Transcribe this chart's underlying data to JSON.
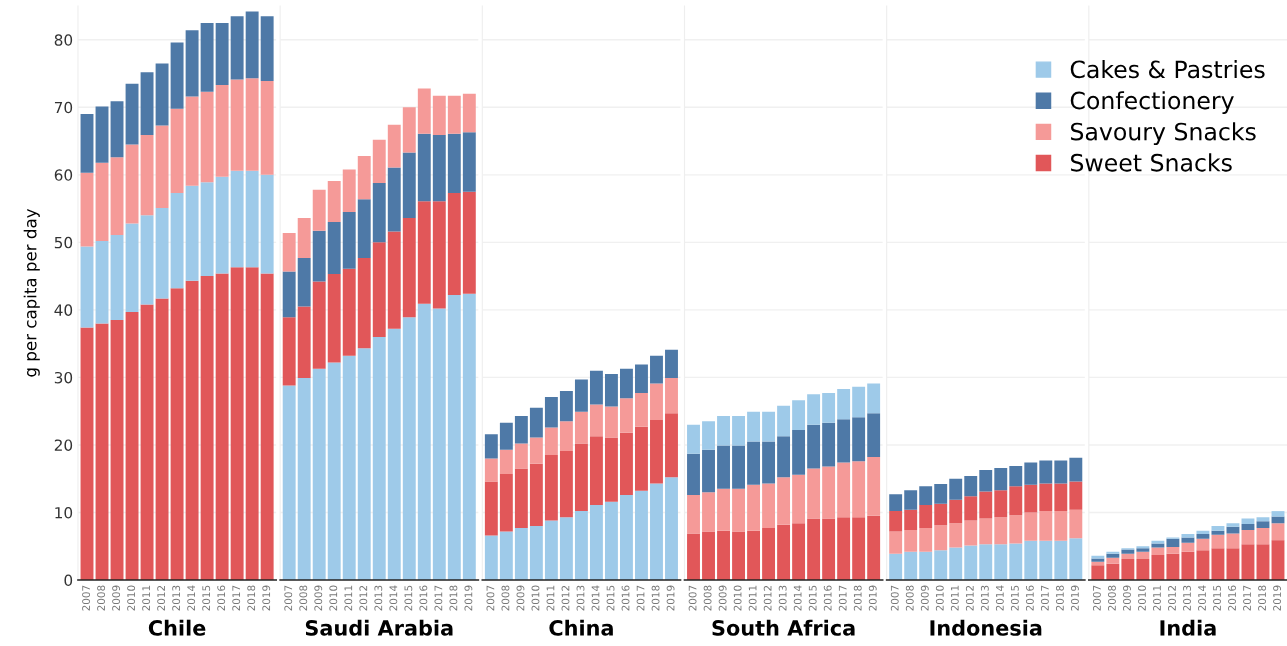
{
  "chart_data": [
    {
      "type": "bar",
      "stacked": true,
      "xlabel": "Chile",
      "legend": "top right",
      "ylabel": "g per capita per day",
      "categories": [
        "2007",
        "2008",
        "2009",
        "2010",
        "2011",
        "2012",
        "2013",
        "2014",
        "2015",
        "2016",
        "2017",
        "2018",
        "2019"
      ],
      "ylim": [
        0,
        85
      ],
      "yticks": [
        0,
        10,
        20,
        30,
        40,
        50,
        60,
        70,
        80
      ],
      "grid": "y",
      "series": [
        {
          "name": "Sweet Snacks",
          "color": "#e15759",
          "values": [
            37.4,
            38.0,
            38.5,
            39.7,
            40.8,
            41.7,
            43.2,
            44.3,
            45.0,
            45.4,
            46.3,
            46.3,
            45.4
          ]
        },
        {
          "name": "Cakes & Pastries",
          "color": "#9ecae9",
          "values": [
            12.0,
            12.2,
            12.6,
            13.1,
            13.2,
            13.4,
            14.1,
            14.1,
            13.9,
            14.3,
            14.3,
            14.3,
            14.6
          ]
        },
        {
          "name": "Savoury Snacks",
          "color": "#f59a98",
          "values": [
            10.9,
            11.6,
            11.5,
            11.7,
            11.9,
            12.2,
            12.5,
            13.2,
            13.4,
            13.6,
            13.5,
            13.7,
            13.9
          ]
        },
        {
          "name": "Confectionery",
          "color": "#4e79a7",
          "values": [
            8.7,
            8.3,
            8.3,
            9.0,
            9.3,
            9.2,
            9.8,
            9.8,
            10.2,
            9.2,
            9.4,
            9.9,
            9.6
          ]
        }
      ]
    },
    {
      "type": "bar",
      "stacked": true,
      "xlabel": "Saudi Arabia",
      "tick_labels": "x",
      "categories": [
        "2007",
        "2008",
        "2009",
        "2010",
        "2011",
        "2012",
        "2013",
        "2014",
        "2015",
        "2016",
        "2017",
        "2018",
        "2019"
      ],
      "ylim": [
        0,
        85
      ],
      "yticks": [
        0,
        10,
        20,
        30,
        40,
        50,
        60,
        70,
        80
      ],
      "grid": "y",
      "series": [
        {
          "color": "#9ecae9",
          "values": [
            28.8,
            29.9,
            31.3,
            32.2,
            33.2,
            34.3,
            36.0,
            37.2,
            38.9,
            40.9,
            40.2,
            42.2,
            42.4
          ]
        },
        {
          "color": "#e15759",
          "values": [
            10.1,
            10.6,
            12.9,
            13.1,
            12.9,
            13.4,
            14.0,
            14.4,
            14.7,
            15.2,
            15.9,
            15.1,
            15.1
          ]
        },
        {
          "color": "#4e79a7",
          "values": [
            6.8,
            7.2,
            7.5,
            7.7,
            8.4,
            8.7,
            8.8,
            9.5,
            9.7,
            10.0,
            9.8,
            8.8,
            8.8
          ]
        },
        {
          "color": "#f59a98",
          "values": [
            5.7,
            5.9,
            6.1,
            6.1,
            6.3,
            6.4,
            6.4,
            6.3,
            6.7,
            6.7,
            5.8,
            5.6,
            5.7
          ]
        }
      ]
    },
    {
      "type": "bar",
      "stacked": true,
      "xlabel": "China",
      "tick_labels": "x",
      "categories": [
        "2007",
        "2008",
        "2009",
        "2010",
        "2011",
        "2012",
        "2013",
        "2014",
        "2015",
        "2016",
        "2017",
        "2018",
        "2019"
      ],
      "ylim": [
        0,
        85
      ],
      "yticks": [
        0,
        10,
        20,
        30,
        40,
        50,
        60,
        70,
        80
      ],
      "grid": "y",
      "series": [
        {
          "color": "#9ecae9",
          "values": [
            6.6,
            7.2,
            7.7,
            8.0,
            8.8,
            9.3,
            10.2,
            11.1,
            11.6,
            12.6,
            13.2,
            14.3,
            15.2
          ]
        },
        {
          "color": "#e15759",
          "values": [
            8.0,
            8.5,
            8.8,
            9.2,
            9.7,
            9.8,
            10.0,
            10.2,
            9.5,
            9.2,
            9.5,
            9.4,
            9.5
          ]
        },
        {
          "color": "#f59a98",
          "values": [
            3.4,
            3.6,
            3.7,
            3.9,
            4.1,
            4.4,
            4.7,
            4.7,
            4.6,
            5.1,
            5.0,
            5.4,
            5.2
          ]
        },
        {
          "color": "#4e79a7",
          "values": [
            3.6,
            4.0,
            4.1,
            4.4,
            4.5,
            4.5,
            4.8,
            5.0,
            4.8,
            4.4,
            4.2,
            4.1,
            4.2
          ]
        }
      ]
    },
    {
      "type": "bar",
      "stacked": true,
      "xlabel": "South Africa",
      "tick_labels": "x",
      "categories": [
        "2007",
        "2008",
        "2009",
        "2010",
        "2011",
        "2012",
        "2013",
        "2014",
        "2015",
        "2016",
        "2017",
        "2018",
        "2019"
      ],
      "ylim": [
        0,
        85
      ],
      "yticks": [
        0,
        10,
        20,
        30,
        40,
        50,
        60,
        70,
        80
      ],
      "grid": "y",
      "series": [
        {
          "color": "#e15759",
          "values": [
            6.9,
            7.2,
            7.3,
            7.2,
            7.3,
            7.7,
            8.2,
            8.4,
            9.1,
            9.1,
            9.3,
            9.3,
            9.5
          ]
        },
        {
          "color": "#f59a98",
          "values": [
            5.7,
            5.8,
            6.2,
            6.3,
            6.8,
            6.6,
            7.0,
            7.2,
            7.4,
            7.7,
            8.1,
            8.3,
            8.7
          ]
        },
        {
          "color": "#4e79a7",
          "values": [
            6.1,
            6.3,
            6.4,
            6.4,
            6.4,
            6.2,
            6.1,
            6.6,
            6.5,
            6.5,
            6.4,
            6.5,
            6.5
          ]
        },
        {
          "color": "#9ecae9",
          "values": [
            4.3,
            4.2,
            4.4,
            4.4,
            4.4,
            4.4,
            4.5,
            4.4,
            4.5,
            4.4,
            4.5,
            4.5,
            4.4
          ]
        }
      ]
    },
    {
      "type": "bar",
      "stacked": true,
      "xlabel": "Indonesia",
      "tick_labels": "x",
      "categories": [
        "2007",
        "2008",
        "2009",
        "2010",
        "2011",
        "2012",
        "2013",
        "2014",
        "2015",
        "2016",
        "2017",
        "2018",
        "2019"
      ],
      "ylim": [
        0,
        85
      ],
      "yticks": [
        0,
        10,
        20,
        30,
        40,
        50,
        60,
        70,
        80
      ],
      "grid": "y",
      "series": [
        {
          "color": "#9ecae9",
          "values": [
            3.9,
            4.2,
            4.2,
            4.4,
            4.8,
            5.1,
            5.3,
            5.3,
            5.4,
            5.8,
            5.8,
            5.8,
            6.2
          ]
        },
        {
          "color": "#f59a98",
          "values": [
            3.3,
            3.2,
            3.5,
            3.7,
            3.6,
            3.7,
            3.8,
            4.0,
            4.2,
            4.2,
            4.4,
            4.4,
            4.2
          ]
        },
        {
          "color": "#e15759",
          "values": [
            3.0,
            3.0,
            3.4,
            3.2,
            3.5,
            3.6,
            4.0,
            4.0,
            4.3,
            4.1,
            4.1,
            4.1,
            4.2
          ]
        },
        {
          "color": "#4e79a7",
          "values": [
            2.5,
            2.9,
            2.8,
            2.9,
            3.1,
            3.0,
            3.2,
            3.3,
            3.0,
            3.3,
            3.4,
            3.4,
            3.5
          ]
        }
      ]
    },
    {
      "type": "bar",
      "stacked": true,
      "xlabel": "India",
      "tick_labels": "x",
      "categories": [
        "2007",
        "2008",
        "2009",
        "2010",
        "2011",
        "2012",
        "2013",
        "2014",
        "2015",
        "2016",
        "2017",
        "2018",
        "2019"
      ],
      "ylim": [
        0,
        85
      ],
      "yticks": [
        0,
        10,
        20,
        30,
        40,
        50,
        60,
        70,
        80
      ],
      "grid": "y",
      "series": [
        {
          "color": "#e15759",
          "values": [
            2.2,
            2.4,
            3.1,
            3.1,
            3.7,
            3.9,
            4.2,
            4.4,
            4.7,
            4.7,
            5.3,
            5.3,
            5.9
          ]
        },
        {
          "color": "#f59a98",
          "values": [
            0.5,
            0.9,
            0.8,
            1.1,
            1.1,
            1.0,
            1.3,
            1.7,
            2.0,
            2.2,
            2.1,
            2.4,
            2.5
          ]
        },
        {
          "color": "#4e79a7",
          "values": [
            0.5,
            0.6,
            0.6,
            0.5,
            0.6,
            1.2,
            0.8,
            0.7,
            0.6,
            1.0,
            0.9,
            1.0,
            1.0
          ]
        },
        {
          "color": "#9ecae9",
          "values": [
            0.4,
            0.3,
            0.2,
            0.3,
            0.4,
            0.2,
            0.5,
            0.5,
            0.7,
            0.5,
            0.8,
            0.6,
            0.8
          ]
        }
      ]
    }
  ]
}
